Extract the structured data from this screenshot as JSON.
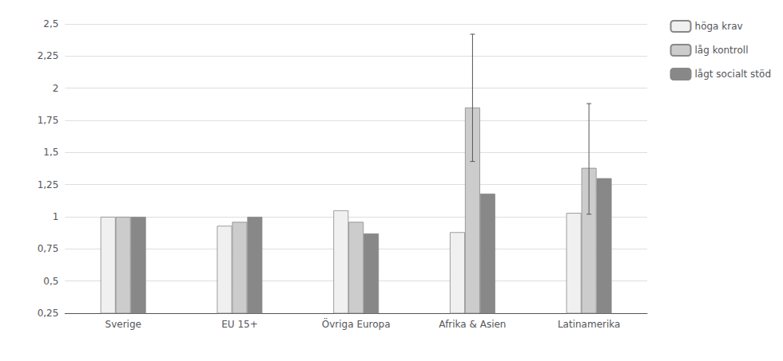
{
  "chart_data": {
    "type": "bar",
    "categories": [
      "Sverige",
      "EU 15+",
      "Övriga Europa",
      "Afrika & Asien",
      "Latinamerika"
    ],
    "series": [
      {
        "name": "höga krav",
        "color": "#f0f0f0",
        "values": [
          1.0,
          0.93,
          1.05,
          0.88,
          1.03
        ]
      },
      {
        "name": "låg kontroll",
        "color": "#cccccc",
        "values": [
          1.0,
          0.96,
          0.96,
          1.85,
          1.38
        ],
        "yerr_low": [
          0.0,
          0.0,
          0.0,
          0.42,
          0.36
        ],
        "yerr_high": [
          0.0,
          0.0,
          0.0,
          0.57,
          0.5
        ]
      },
      {
        "name": "lågt socialt stöd",
        "color": "#888888",
        "values": [
          1.0,
          1.0,
          0.87,
          1.18,
          1.3
        ]
      }
    ],
    "ylim": [
      0.25,
      2.5
    ],
    "yticks": [
      {
        "value": 0.25,
        "label": "0,25"
      },
      {
        "value": 0.5,
        "label": "0,5"
      },
      {
        "value": 0.75,
        "label": "0,75"
      },
      1,
      {
        "value": 1.25,
        "label": "1,25"
      },
      {
        "value": 1.5,
        "label": "1,5"
      },
      {
        "value": 1.75,
        "label": "1,75"
      },
      2,
      {
        "value": 2.25,
        "label": "2,25"
      },
      {
        "value": 2.5,
        "label": "2,5"
      }
    ],
    "grid": true,
    "legend": "upper right"
  }
}
